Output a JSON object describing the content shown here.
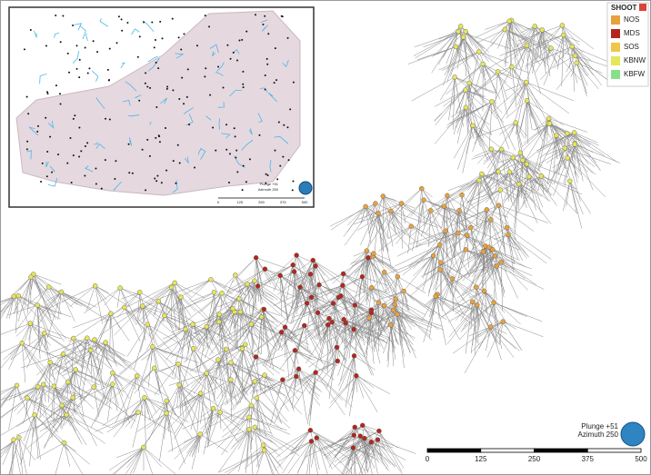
{
  "legend": {
    "title": "SHOOT",
    "items": [
      {
        "name": "NOS",
        "color": "#e8a23c"
      },
      {
        "name": "MDS",
        "color": "#b3261e"
      },
      {
        "name": "SOS",
        "color": "#f0c64a"
      },
      {
        "name": "KBNW",
        "color": "#e6e65a"
      },
      {
        "name": "KBFW",
        "color": "#86e08a"
      }
    ]
  },
  "scale_bar": {
    "ticks": [
      0,
      125,
      250,
      375,
      500
    ]
  },
  "orientation": {
    "plunge": "Plunge +51",
    "azimuth": "Azimuth 250"
  },
  "inset": {
    "scale_bar": {
      "ticks": [
        0,
        125,
        250,
        375,
        500
      ]
    },
    "orientation": {
      "plunge": "Plunge +51",
      "azimuth": "Azimuth 250"
    }
  }
}
